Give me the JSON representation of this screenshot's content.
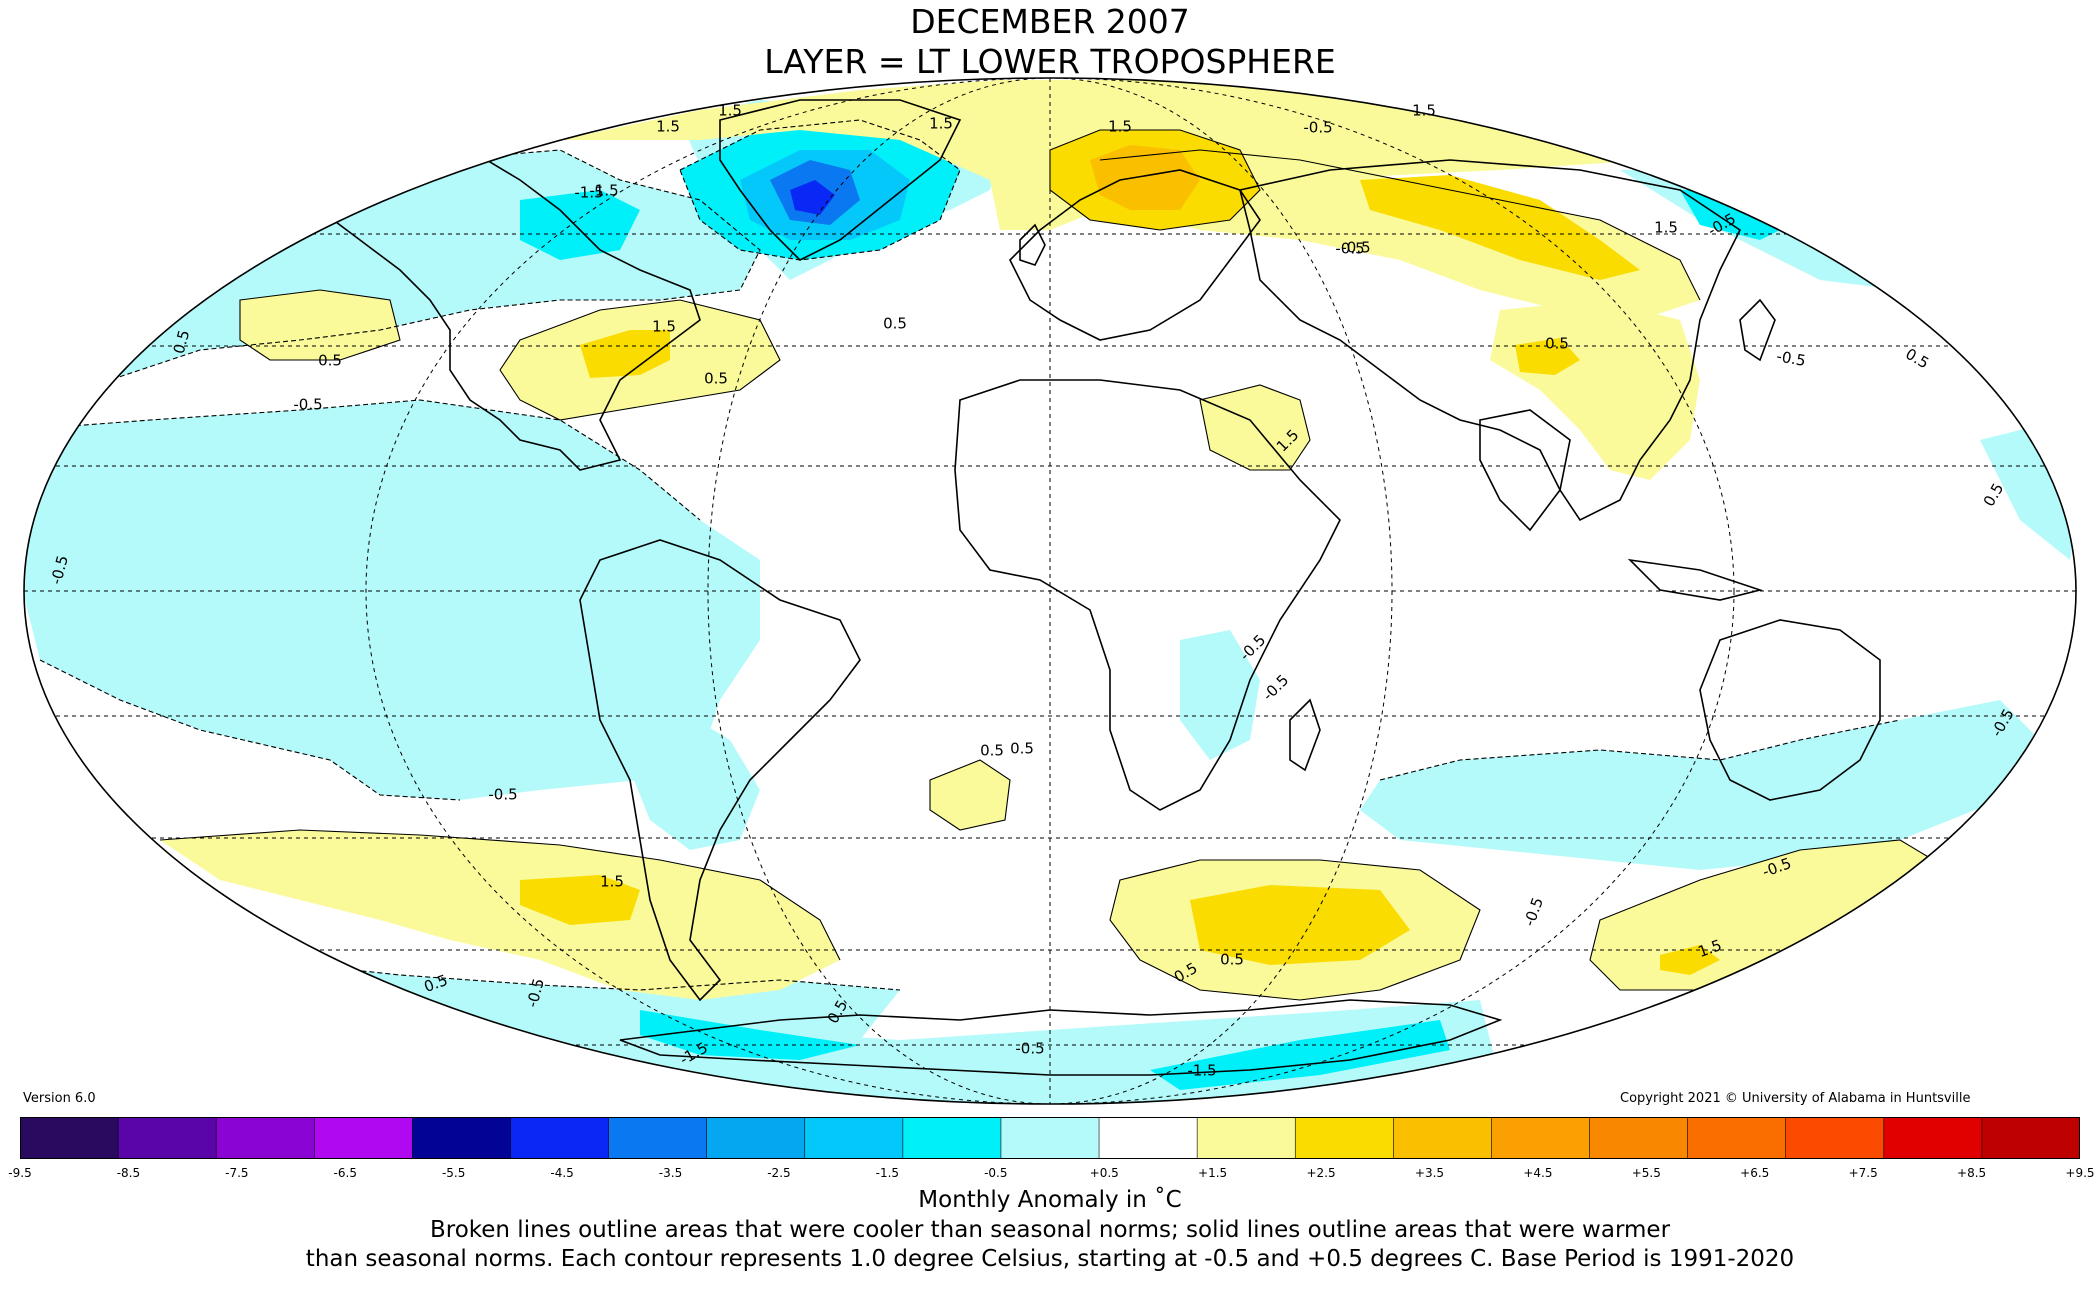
{
  "title": {
    "line1": "DECEMBER 2007",
    "line2": "LAYER = LT LOWER TROPOSPHERE"
  },
  "version": "Version 6.0",
  "copyright": "Copyright 2021 © University of Alabama in Huntsville",
  "colorbar": {
    "ticks": [
      "-9.5",
      "-8.5",
      "-7.5",
      "-6.5",
      "-5.5",
      "-4.5",
      "-3.5",
      "-2.5",
      "-1.5",
      "-0.5",
      "+0.5",
      "+1.5",
      "+2.5",
      "+3.5",
      "+4.5",
      "+5.5",
      "+6.5",
      "+7.5",
      "+8.5",
      "+9.5"
    ],
    "colors": [
      "#2a0a5e",
      "#5a05a8",
      "#8a04d4",
      "#b008f0",
      "#030396",
      "#0a28f5",
      "#0a78f0",
      "#05a8f0",
      "#05c8fa",
      "#00f0fa",
      "#b4fafa",
      "#ffffff",
      "#fafa9a",
      "#fadc00",
      "#fac000",
      "#faa000",
      "#fa8700",
      "#fa6e00",
      "#fa4b00",
      "#e10000",
      "#be0000"
    ],
    "units_label": "Monthly Anomaly in ˚C"
  },
  "caption": {
    "line1": "Broken lines outline areas that were cooler than seasonal norms; solid lines outline areas that were warmer",
    "line2": "than seasonal norms. Each contour represents 1.0 degree Celsius, starting at -0.5 and +0.5 degrees C. Base Period is 1991-2020"
  },
  "map": {
    "projection": "mollweide",
    "contour_labels": [
      "1.5",
      "1.5",
      "1.5",
      "-1.5",
      "-1.5",
      "1.5",
      "1.5",
      "-0.5",
      "-0.5",
      "0.5",
      "0.5",
      "-0.5",
      "1.5",
      "0.5",
      "0.5",
      "-0.5",
      "1.5",
      "0.5",
      "0.5",
      "-0.5",
      "0.5",
      "-0.5",
      "-0.5",
      "0.5",
      "-0.5",
      "-0.5",
      "1.5",
      "-0.5",
      "0.5",
      "0.5",
      "-0.5",
      "-0.5",
      "1.5",
      "0.5",
      "1.5",
      "0.5",
      "-0.5",
      "-1.5",
      "-1.5",
      "-0.5",
      "0.5",
      "-0.5"
    ],
    "colors": {
      "cool_1": "#b4fafa",
      "cool_2": "#00f0fa",
      "cool_3": "#05c8fa",
      "cool_4": "#0a78f0",
      "cool_5": "#0a28f5",
      "warm_1": "#fafa9a",
      "warm_2": "#fadc00",
      "warm_3": "#fac000"
    }
  }
}
